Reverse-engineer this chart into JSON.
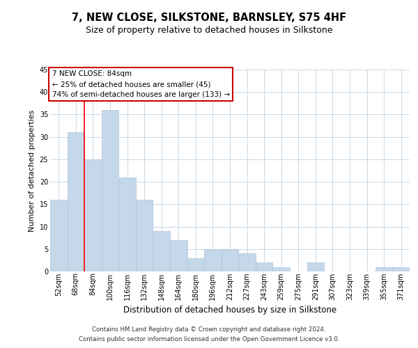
{
  "title": "7, NEW CLOSE, SILKSTONE, BARNSLEY, S75 4HF",
  "subtitle": "Size of property relative to detached houses in Silkstone",
  "xlabel": "Distribution of detached houses by size in Silkstone",
  "ylabel": "Number of detached properties",
  "categories": [
    "52sqm",
    "68sqm",
    "84sqm",
    "100sqm",
    "116sqm",
    "132sqm",
    "148sqm",
    "164sqm",
    "180sqm",
    "196sqm",
    "212sqm",
    "227sqm",
    "243sqm",
    "259sqm",
    "275sqm",
    "291sqm",
    "307sqm",
    "323sqm",
    "339sqm",
    "355sqm",
    "371sqm"
  ],
  "values": [
    16,
    31,
    25,
    36,
    21,
    16,
    9,
    7,
    3,
    5,
    5,
    4,
    2,
    1,
    0,
    2,
    0,
    0,
    0,
    1,
    1
  ],
  "bar_color": "#c5d8ea",
  "bar_edge_color": "#aac4d8",
  "red_line_x": 2.0,
  "ylim": [
    0,
    45
  ],
  "yticks": [
    0,
    5,
    10,
    15,
    20,
    25,
    30,
    35,
    40,
    45
  ],
  "annotation_text": "7 NEW CLOSE: 84sqm\n← 25% of detached houses are smaller (45)\n74% of semi-detached houses are larger (133) →",
  "annotation_box_color": "#ffffff",
  "annotation_box_edge": "#cc0000",
  "footnote1": "Contains HM Land Registry data © Crown copyright and database right 2024.",
  "footnote2": "Contains public sector information licensed under the Open Government Licence v3.0.",
  "background_color": "#ffffff",
  "grid_color": "#c8d8e8",
  "title_fontsize": 10.5,
  "subtitle_fontsize": 9,
  "ylabel_fontsize": 8,
  "xlabel_fontsize": 8.5,
  "tick_fontsize": 7,
  "annot_fontsize": 7.5,
  "footnote_fontsize": 6.2
}
